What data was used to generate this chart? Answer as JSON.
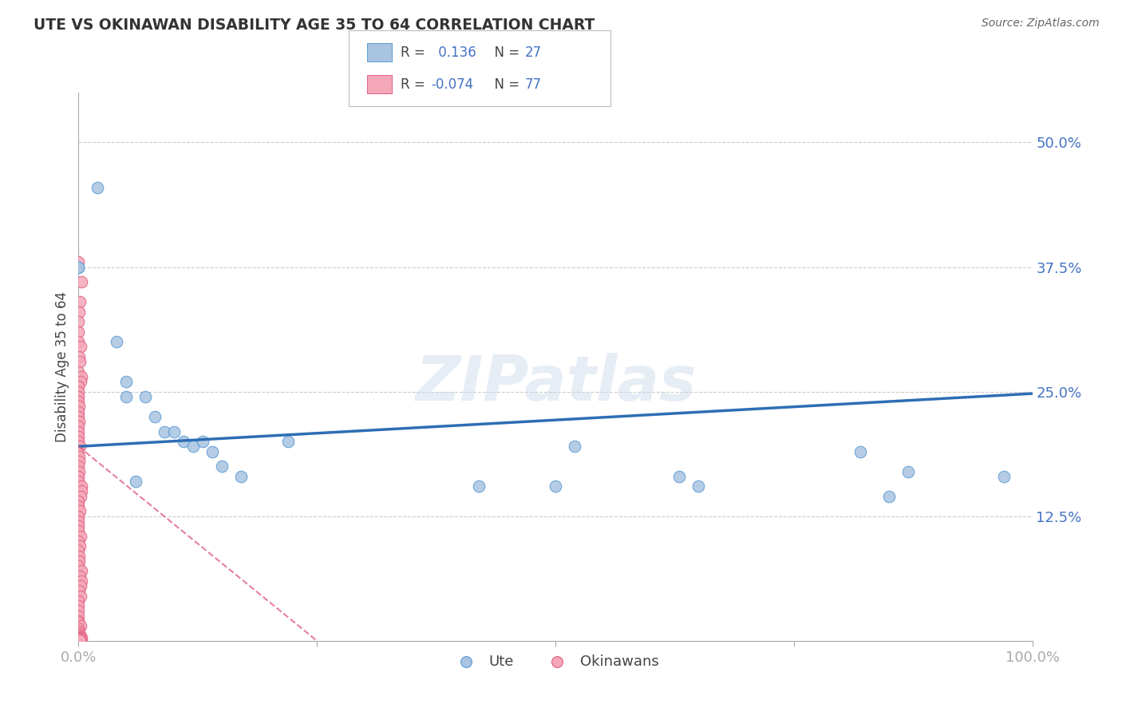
{
  "title": "UTE VS OKINAWAN DISABILITY AGE 35 TO 64 CORRELATION CHART",
  "source": "Source: ZipAtlas.com",
  "ylabel_label": "Disability Age 35 to 64",
  "xlim": [
    0.0,
    1.0
  ],
  "ylim": [
    0.0,
    0.55
  ],
  "ute_color": "#a8c4e0",
  "okinawan_color": "#f4a7b9",
  "ute_edge_color": "#5b9bd5",
  "okinawan_edge_color": "#e06080",
  "trendline_ute_color": "#2e6db4",
  "trendline_okinawan_color": "#e06080",
  "legend_R_ute": "0.136",
  "legend_N_ute": "27",
  "legend_R_okinawan": "-0.074",
  "legend_N_okinawan": "77",
  "ute_points_x": [
    0.02,
    0.0,
    0.0,
    0.04,
    0.05,
    0.05,
    0.07,
    0.08,
    0.09,
    0.1,
    0.11,
    0.12,
    0.13,
    0.14,
    0.15,
    0.17,
    0.22,
    0.42,
    0.5,
    0.52,
    0.63,
    0.65,
    0.82,
    0.85,
    0.87,
    0.97,
    0.06
  ],
  "ute_points_y": [
    0.455,
    0.375,
    0.375,
    0.3,
    0.26,
    0.245,
    0.245,
    0.225,
    0.21,
    0.21,
    0.2,
    0.195,
    0.2,
    0.19,
    0.175,
    0.165,
    0.2,
    0.155,
    0.155,
    0.195,
    0.165,
    0.155,
    0.19,
    0.145,
    0.17,
    0.165,
    0.16
  ],
  "okinawan_points_x": [
    0.0,
    0.0,
    0.0,
    0.0,
    0.0,
    0.0,
    0.0,
    0.0,
    0.0,
    0.0,
    0.0,
    0.0,
    0.0,
    0.0,
    0.0,
    0.0,
    0.0,
    0.0,
    0.0,
    0.0,
    0.0,
    0.0,
    0.0,
    0.0,
    0.0,
    0.0,
    0.0,
    0.0,
    0.0,
    0.0,
    0.0,
    0.0,
    0.0,
    0.0,
    0.0,
    0.0,
    0.0,
    0.0,
    0.0,
    0.0,
    0.0,
    0.0,
    0.0,
    0.0,
    0.0,
    0.0,
    0.0,
    0.0,
    0.0,
    0.0,
    0.0,
    0.0,
    0.0,
    0.0,
    0.0,
    0.0,
    0.0,
    0.0,
    0.0,
    0.0,
    0.0,
    0.0,
    0.0,
    0.0,
    0.0,
    0.0,
    0.0,
    0.0,
    0.0,
    0.0,
    0.0,
    0.0,
    0.0,
    0.0,
    0.0,
    0.0,
    0.0
  ],
  "okinawan_points_y": [
    0.38,
    0.36,
    0.34,
    0.33,
    0.32,
    0.31,
    0.3,
    0.295,
    0.285,
    0.28,
    0.27,
    0.265,
    0.26,
    0.255,
    0.25,
    0.245,
    0.24,
    0.235,
    0.23,
    0.225,
    0.22,
    0.215,
    0.21,
    0.205,
    0.2,
    0.195,
    0.19,
    0.185,
    0.18,
    0.175,
    0.17,
    0.165,
    0.16,
    0.155,
    0.15,
    0.145,
    0.14,
    0.135,
    0.13,
    0.125,
    0.12,
    0.115,
    0.11,
    0.105,
    0.1,
    0.095,
    0.09,
    0.085,
    0.08,
    0.075,
    0.07,
    0.065,
    0.06,
    0.055,
    0.05,
    0.045,
    0.04,
    0.035,
    0.03,
    0.025,
    0.02,
    0.018,
    0.015,
    0.013,
    0.01,
    0.008,
    0.006,
    0.005,
    0.004,
    0.003,
    0.003,
    0.002,
    0.002,
    0.001,
    0.001,
    0.001,
    0.001
  ],
  "watermark": "ZIPatlas",
  "background_color": "#ffffff",
  "grid_color": "#cccccc"
}
